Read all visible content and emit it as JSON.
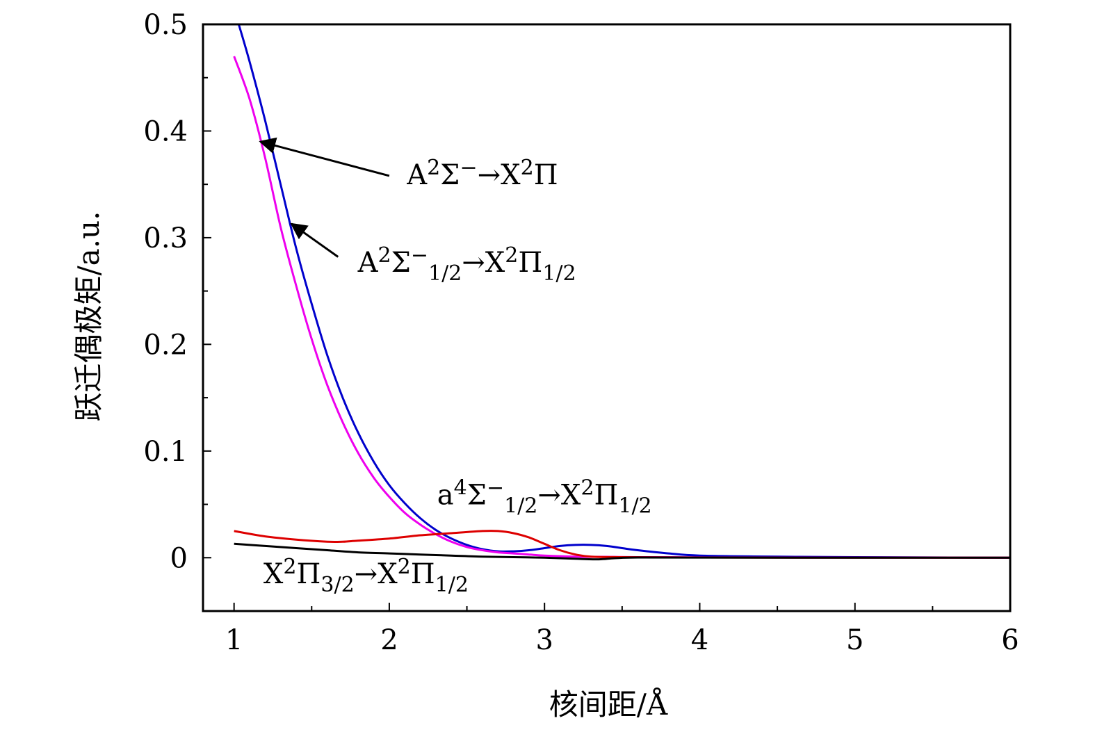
{
  "chart_data": {
    "type": "line",
    "title": "",
    "xlabel": "核间距/Å",
    "ylabel": "跃迁偶极矩/a.u.",
    "xlim": [
      0.8,
      6
    ],
    "ylim": [
      -0.05,
      0.5
    ],
    "xticks": [
      1,
      2,
      3,
      4,
      5,
      6
    ],
    "xtick_labels": [
      "1",
      "2",
      "3",
      "4",
      "5",
      "6"
    ],
    "yticks": [
      0,
      0.1,
      0.2,
      0.3,
      0.4,
      0.5
    ],
    "ytick_labels": [
      "0",
      "0.1",
      "0.2",
      "0.3",
      "0.4",
      "0.5"
    ],
    "grid": false,
    "legend": "none",
    "series": [
      {
        "color": "#0000cc",
        "x": [
          1.03,
          1.1,
          1.2,
          1.3,
          1.4,
          1.5,
          1.6,
          1.7,
          1.8,
          1.9,
          2.0,
          2.1,
          2.2,
          2.3,
          2.4,
          2.5,
          2.6,
          2.7,
          2.8,
          2.9,
          3.0,
          3.1,
          3.2,
          3.3,
          3.4,
          3.5,
          3.6,
          3.8,
          4.0,
          4.5,
          5.0,
          6.0
        ],
        "y": [
          0.5,
          0.465,
          0.41,
          0.35,
          0.29,
          0.238,
          0.19,
          0.15,
          0.117,
          0.09,
          0.068,
          0.051,
          0.037,
          0.026,
          0.018,
          0.012,
          0.008,
          0.006,
          0.006,
          0.007,
          0.009,
          0.011,
          0.012,
          0.012,
          0.011,
          0.009,
          0.007,
          0.004,
          0.002,
          0.001,
          0.0005,
          0.0
        ]
      },
      {
        "color": "#ee00ee",
        "x": [
          1.0,
          1.1,
          1.2,
          1.3,
          1.4,
          1.5,
          1.6,
          1.7,
          1.8,
          1.9,
          2.0,
          2.1,
          2.2,
          2.3,
          2.4,
          2.5,
          2.6,
          2.7,
          2.8,
          2.9,
          3.0,
          3.2,
          3.4,
          3.6,
          4.0,
          5.0,
          6.0
        ],
        "y": [
          0.47,
          0.43,
          0.375,
          0.31,
          0.255,
          0.205,
          0.162,
          0.127,
          0.098,
          0.075,
          0.057,
          0.042,
          0.031,
          0.022,
          0.015,
          0.01,
          0.007,
          0.005,
          0.004,
          0.003,
          0.002,
          0.001,
          0.0008,
          0.0005,
          0.0003,
          0.0001,
          0.0
        ]
      },
      {
        "color": "#dd0000",
        "x": [
          1.0,
          1.2,
          1.4,
          1.6,
          1.7,
          1.8,
          2.0,
          2.2,
          2.4,
          2.6,
          2.7,
          2.8,
          2.9,
          3.0,
          3.1,
          3.2,
          3.3,
          3.5,
          4.0,
          5.0,
          6.0
        ],
        "y": [
          0.025,
          0.02,
          0.017,
          0.015,
          0.015,
          0.016,
          0.018,
          0.021,
          0.023,
          0.025,
          0.025,
          0.023,
          0.019,
          0.013,
          0.007,
          0.003,
          0.001,
          0.0005,
          0.0002,
          0.0,
          0.0
        ]
      },
      {
        "color": "#000000",
        "x": [
          1.0,
          1.2,
          1.4,
          1.6,
          1.8,
          2.0,
          2.2,
          2.4,
          2.6,
          2.8,
          3.0,
          3.2,
          3.35,
          3.45,
          3.6,
          4.0,
          5.0,
          6.0
        ],
        "y": [
          0.013,
          0.011,
          0.009,
          0.007,
          0.005,
          0.004,
          0.003,
          0.002,
          0.001,
          0.0005,
          0.0,
          -0.001,
          -0.0015,
          -0.0005,
          0.0002,
          0.0001,
          0.0,
          0.0
        ]
      }
    ],
    "annotations": [
      {
        "text_parts": [
          [
            "A",
            ""
          ],
          [
            "2",
            "sup"
          ],
          [
            "Σ",
            ""
          ],
          [
            "−",
            "sup"
          ],
          [
            "→X",
            ""
          ],
          [
            "2",
            "sup"
          ],
          [
            "Π",
            ""
          ]
        ],
        "text_x": 2.6,
        "text_y": 0.35,
        "arrow_from": [
          2.0,
          0.358
        ],
        "arrow_to": [
          1.17,
          0.39
        ]
      },
      {
        "text_parts": [
          [
            "A",
            ""
          ],
          [
            "2",
            "sup"
          ],
          [
            "Σ",
            ""
          ],
          [
            "−",
            "sup"
          ],
          [
            "1/2",
            "sub"
          ],
          [
            "→X",
            ""
          ],
          [
            "2",
            "sup"
          ],
          [
            "Π",
            ""
          ],
          [
            "1/2",
            "sub"
          ]
        ],
        "text_x": 2.5,
        "text_y": 0.268,
        "arrow_from": [
          1.67,
          0.282
        ],
        "arrow_to": [
          1.37,
          0.313
        ]
      },
      {
        "text_parts": [
          [
            "a",
            ""
          ],
          [
            "4",
            "sup"
          ],
          [
            "Σ",
            ""
          ],
          [
            "−",
            "sup"
          ],
          [
            "1/2",
            "sub"
          ],
          [
            "→X",
            ""
          ],
          [
            "2",
            "sup"
          ],
          [
            "Π",
            ""
          ],
          [
            "1/2",
            "sub"
          ]
        ],
        "text_x": 3.0,
        "text_y": 0.05
      },
      {
        "text_parts": [
          [
            "X",
            ""
          ],
          [
            "2",
            "sup"
          ],
          [
            "Π",
            ""
          ],
          [
            "3/2",
            "sub"
          ],
          [
            "→X",
            ""
          ],
          [
            "2",
            "sup"
          ],
          [
            "Π",
            ""
          ],
          [
            "1/2",
            "sub"
          ]
        ],
        "text_x": 1.85,
        "text_y": -0.024
      }
    ]
  }
}
